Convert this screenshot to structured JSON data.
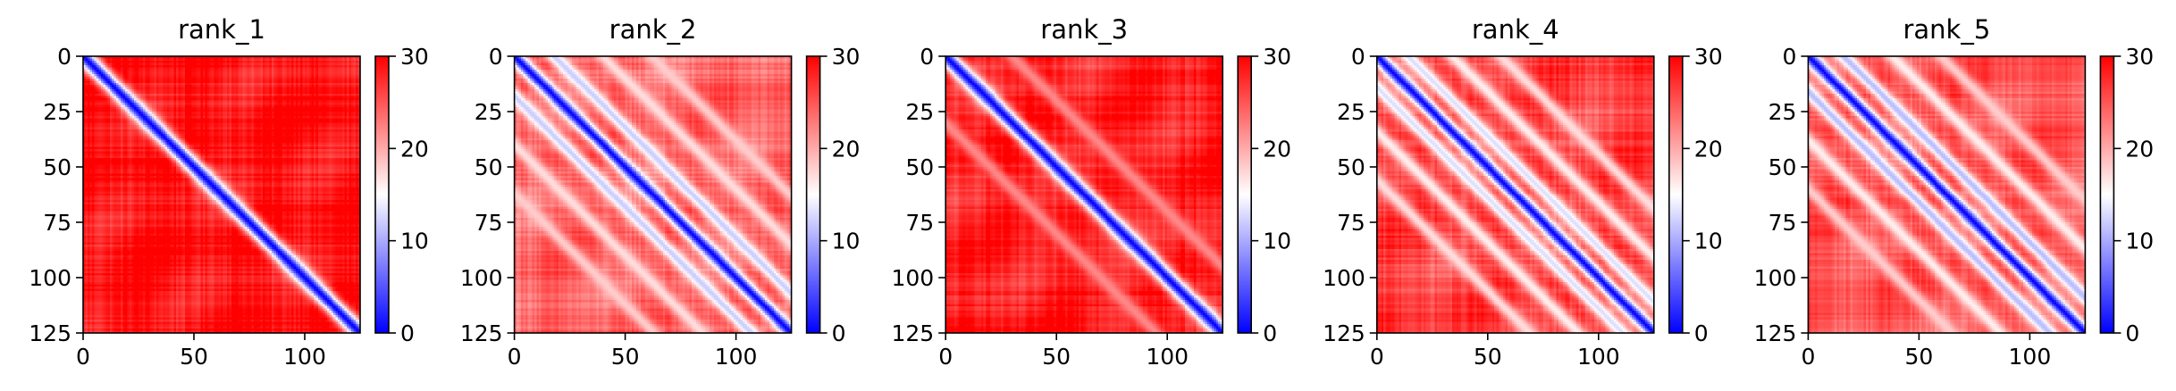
{
  "chart_data": [
    {
      "type": "heatmap",
      "title": "rank_1",
      "xlim": [
        0,
        125
      ],
      "ylim": [
        125,
        0
      ],
      "x_ticks": [
        "0",
        "50",
        "100"
      ],
      "y_ticks": [
        "0",
        "25",
        "50",
        "75",
        "100",
        "125"
      ],
      "colorbar": {
        "min": 0,
        "max": 30,
        "ticks": [
          "0",
          "10",
          "20",
          "30"
        ],
        "cmap": [
          "#0000ff",
          "#ffffff",
          "#ff0000"
        ]
      },
      "diag_band_width": 6,
      "side_bands": [],
      "background_level": 29
    },
    {
      "type": "heatmap",
      "title": "rank_2",
      "xlim": [
        0,
        125
      ],
      "ylim": [
        125,
        0
      ],
      "x_ticks": [
        "0",
        "50",
        "100"
      ],
      "y_ticks": [
        "0",
        "25",
        "50",
        "75",
        "100",
        "125"
      ],
      "colorbar": {
        "min": 0,
        "max": 30,
        "ticks": [
          "0",
          "10",
          "20",
          "30"
        ],
        "cmap": [
          "#0000ff",
          "#ffffff",
          "#ff0000"
        ]
      },
      "diag_band_width": 5,
      "side_bands": [
        {
          "offset": 18,
          "level": 12
        },
        {
          "offset": 40,
          "level": 17
        },
        {
          "offset": 62,
          "level": 18
        }
      ],
      "background_level": 24
    },
    {
      "type": "heatmap",
      "title": "rank_3",
      "xlim": [
        0,
        125
      ],
      "ylim": [
        125,
        0
      ],
      "x_ticks": [
        "0",
        "50",
        "100"
      ],
      "y_ticks": [
        "0",
        "25",
        "50",
        "75",
        "100",
        "125"
      ],
      "colorbar": {
        "min": 0,
        "max": 30,
        "ticks": [
          "0",
          "10",
          "20",
          "30"
        ],
        "cmap": [
          "#0000ff",
          "#ffffff",
          "#ff0000"
        ]
      },
      "diag_band_width": 6,
      "side_bands": [
        {
          "offset": 30,
          "level": 22
        }
      ],
      "background_level": 28
    },
    {
      "type": "heatmap",
      "title": "rank_4",
      "xlim": [
        0,
        125
      ],
      "ylim": [
        125,
        0
      ],
      "x_ticks": [
        "0",
        "50",
        "100"
      ],
      "y_ticks": [
        "0",
        "25",
        "50",
        "75",
        "100",
        "125"
      ],
      "colorbar": {
        "min": 0,
        "max": 30,
        "ticks": [
          "0",
          "10",
          "20",
          "30"
        ],
        "cmap": [
          "#0000ff",
          "#ffffff",
          "#ff0000"
        ]
      },
      "diag_band_width": 5,
      "side_bands": [
        {
          "offset": 14,
          "level": 13
        },
        {
          "offset": 34,
          "level": 16
        },
        {
          "offset": 56,
          "level": 17
        }
      ],
      "background_level": 26
    },
    {
      "type": "heatmap",
      "title": "rank_5",
      "xlim": [
        0,
        125
      ],
      "ylim": [
        125,
        0
      ],
      "x_ticks": [
        "0",
        "50",
        "100"
      ],
      "y_ticks": [
        "0",
        "25",
        "50",
        "75",
        "100",
        "125"
      ],
      "colorbar": {
        "min": 0,
        "max": 30,
        "ticks": [
          "0",
          "10",
          "20",
          "30"
        ],
        "cmap": [
          "#0000ff",
          "#ffffff",
          "#ff0000"
        ]
      },
      "diag_band_width": 5,
      "side_bands": [
        {
          "offset": 16,
          "level": 11
        },
        {
          "offset": 38,
          "level": 16
        },
        {
          "offset": 60,
          "level": 18
        }
      ],
      "background_level": 25
    }
  ]
}
